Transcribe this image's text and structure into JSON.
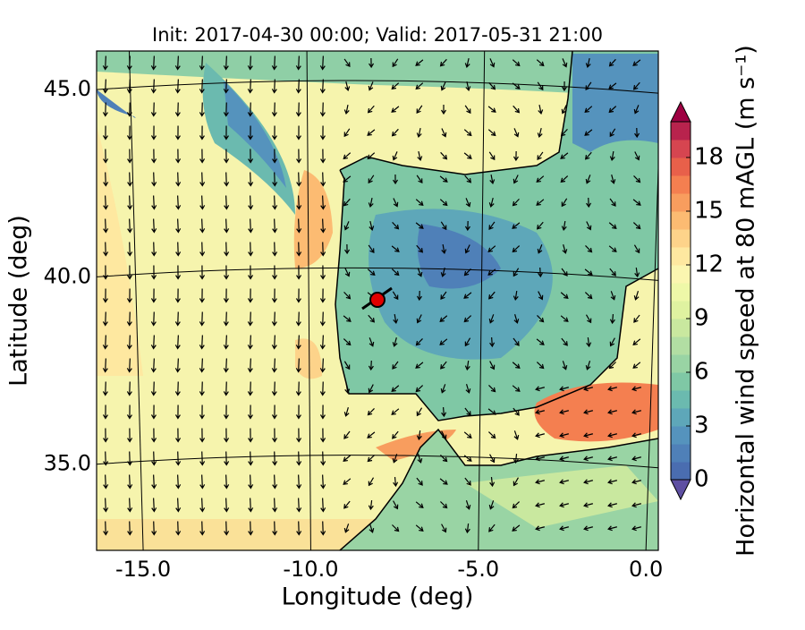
{
  "chart_data": {
    "type": "wind-map",
    "title": "Init: 2017-04-30 00:00; Valid: 2017-05-31 21:00",
    "x_label": "Longitude (deg)",
    "y_label": "Latitude (deg)",
    "xlim": [
      -16.39,
      0.37
    ],
    "xticks": [
      {
        "value": -15,
        "label": "-15.0"
      },
      {
        "value": -10,
        "label": "-10.0"
      },
      {
        "value": -5,
        "label": "-5.0"
      },
      {
        "value": 0,
        "label": "0.0"
      }
    ],
    "ylim": [
      32.7,
      46.03
    ],
    "yticks": [
      {
        "value": 35,
        "label": "35.0"
      },
      {
        "value": 40,
        "label": "40.0"
      },
      {
        "value": 45,
        "label": "45.0"
      }
    ],
    "grid": true,
    "colorbar": {
      "label": "Horizontal wind speed at 80 mAGL (m s⁻¹)",
      "clim": [
        0,
        20
      ],
      "ticks": [
        0,
        3,
        6,
        9,
        12,
        15,
        18
      ],
      "under_color": "#5e4fa2",
      "over_color": "#9e0142",
      "colors": [
        "#4a6db0",
        "#4f80b8",
        "#5593bd",
        "#5ea7b9",
        "#6bbaaf",
        "#7fc8a5",
        "#99d4a4",
        "#b2dea3",
        "#c9e89f",
        "#dff2a0",
        "#eef8a8",
        "#fbf6b0",
        "#fee8a0",
        "#fdd38a",
        "#fcbb72",
        "#f89d5e",
        "#f47f50",
        "#e8604a",
        "#d64550",
        "#b8234d"
      ]
    }
  }
}
